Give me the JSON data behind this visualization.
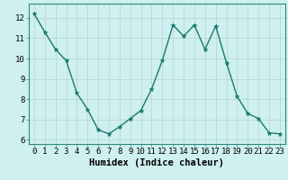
{
  "x": [
    0,
    1,
    2,
    3,
    4,
    5,
    6,
    7,
    8,
    9,
    10,
    11,
    12,
    13,
    14,
    15,
    16,
    17,
    18,
    19,
    20,
    21,
    22,
    23
  ],
  "y": [
    12.2,
    11.3,
    10.45,
    9.9,
    8.3,
    7.5,
    6.5,
    6.3,
    6.65,
    7.05,
    7.45,
    8.5,
    9.9,
    11.65,
    11.1,
    11.65,
    10.45,
    11.6,
    9.8,
    8.15,
    7.3,
    7.05,
    6.35,
    6.3
  ],
  "line_color": "#1a7a6e",
  "marker": "*",
  "marker_size": 3.5,
  "bg_color": "#cff0f0",
  "grid_color": "#b8d8d8",
  "xlabel": "Humidex (Indice chaleur)",
  "xlim": [
    -0.5,
    23.5
  ],
  "ylim": [
    5.8,
    12.7
  ],
  "yticks": [
    6,
    7,
    8,
    9,
    10,
    11,
    12
  ],
  "xticks": [
    0,
    1,
    2,
    3,
    4,
    5,
    6,
    7,
    8,
    9,
    10,
    11,
    12,
    13,
    14,
    15,
    16,
    17,
    18,
    19,
    20,
    21,
    22,
    23
  ],
  "tick_fontsize": 6.5,
  "xlabel_fontsize": 7.5,
  "line_width": 1.0,
  "spine_color": "#2a8a7e"
}
